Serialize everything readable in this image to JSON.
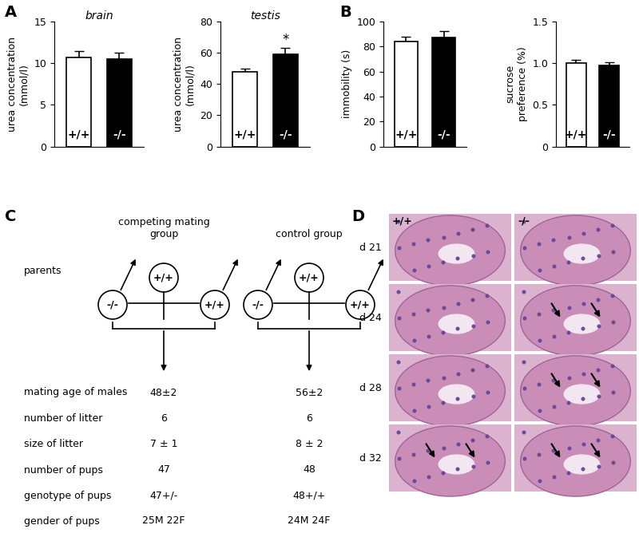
{
  "chart_data": [
    {
      "type": "bar",
      "title": "brain",
      "y_label": "urea concentration\n(mmol/l)",
      "categories": [
        "+/+",
        "-/-"
      ],
      "values": [
        10.7,
        10.5
      ],
      "error": [
        0.7,
        0.7
      ],
      "colors": [
        "#ffffff",
        "#000000"
      ],
      "ylim": [
        0,
        15
      ],
      "yticks": [
        0,
        5,
        10,
        15
      ],
      "tick_labels": "y"
    },
    {
      "type": "bar",
      "title": "testis",
      "y_label": "urea concentration\n(mmol/l)",
      "categories": [
        "+/+",
        "-/-"
      ],
      "values": [
        47.5,
        59
      ],
      "error": [
        2.5,
        4
      ],
      "colors": [
        "#ffffff",
        "#000000"
      ],
      "ylim": [
        0,
        80
      ],
      "yticks": [
        0,
        20,
        40,
        60,
        80
      ],
      "tick_labels": "y",
      "annotations": [
        {
          "category": "-/-",
          "text": "*"
        }
      ]
    },
    {
      "type": "bar",
      "y_label": "immobility (s)",
      "categories": [
        "+/+",
        "-/-"
      ],
      "values": [
        84,
        87
      ],
      "error": [
        4,
        5
      ],
      "colors": [
        "#ffffff",
        "#000000"
      ],
      "ylim": [
        0,
        100
      ],
      "yticks": [
        0,
        20,
        40,
        60,
        80,
        100
      ],
      "tick_labels": "y"
    },
    {
      "type": "bar",
      "y_label": "sucrose\npreference (%)",
      "categories": [
        "+/+",
        "-/-"
      ],
      "values": [
        1.0,
        0.97
      ],
      "error": [
        0.04,
        0.04
      ],
      "colors": [
        "#ffffff",
        "#000000"
      ],
      "ylim": [
        0,
        1.5
      ],
      "yticks": [
        0,
        0.5,
        {
          "value": 1.0,
          "label": "1.0"
        },
        1.5
      ],
      "tick_labels": "y"
    }
  ],
  "panel_labels": [
    "A",
    "B",
    "C",
    "D"
  ],
  "diagram": {
    "groups": [
      "competing mating\ngroup",
      "control group"
    ],
    "parents_label": "parents",
    "parents": [
      {
        "female": "+/+",
        "males": [
          "-/-",
          "+/+"
        ]
      },
      {
        "female": "+/+",
        "males": [
          "-/-",
          "+/+"
        ]
      }
    ],
    "rows": [
      {
        "label": "mating age of males",
        "values": [
          "48±2",
          "56±2"
        ]
      },
      {
        "label": "number of litter",
        "values": [
          "6",
          "6"
        ]
      },
      {
        "label": "size of litter",
        "values": [
          "7 ± 1",
          "8 ± 2"
        ]
      },
      {
        "label": "number of pups",
        "values": [
          "47",
          "48"
        ]
      },
      {
        "label": "genotype of pups",
        "values": [
          "47+/-",
          "48+/+"
        ]
      },
      {
        "label": "gender of pups",
        "values": [
          "25M 22F",
          "24M 24F"
        ]
      }
    ]
  },
  "histology": {
    "columns": [
      "+/+",
      "-/-"
    ],
    "rows": [
      "d 21",
      "d 24",
      "d 28",
      "d 32"
    ],
    "marked": [
      {
        "row": "d 24",
        "column": "-/-"
      },
      {
        "row": "d 28",
        "column": "-/-"
      },
      {
        "row": "d 32",
        "column": "+/+"
      },
      {
        "row": "d 32",
        "column": "-/-"
      }
    ]
  }
}
